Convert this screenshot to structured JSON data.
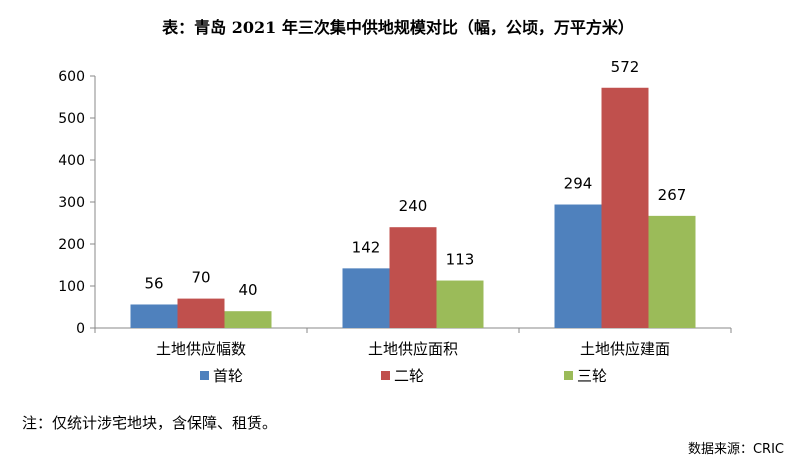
{
  "chart_data": {
    "type": "bar",
    "title": "表：青岛 2021 年三次集中供地规模对比（幅，公顷，万平方米）",
    "categories": [
      "土地供应幅数",
      "土地供应面积",
      "土地供应建面"
    ],
    "series": [
      {
        "name": "首轮",
        "values": [
          56,
          142,
          294
        ],
        "color": "#4F81BD"
      },
      {
        "name": "二轮",
        "values": [
          70,
          240,
          572
        ],
        "color": "#C0504D"
      },
      {
        "name": "三轮",
        "values": [
          40,
          113,
          267
        ],
        "color": "#9BBB59"
      }
    ],
    "ylim": [
      0,
      600
    ],
    "yticks": [
      0,
      100,
      200,
      300,
      400,
      500,
      600
    ],
    "grid": false,
    "legend": "bottom",
    "data_labels": true
  },
  "note": "注：仅统计涉宅地块，含保障、租赁。",
  "source": "数据来源：CRIC"
}
